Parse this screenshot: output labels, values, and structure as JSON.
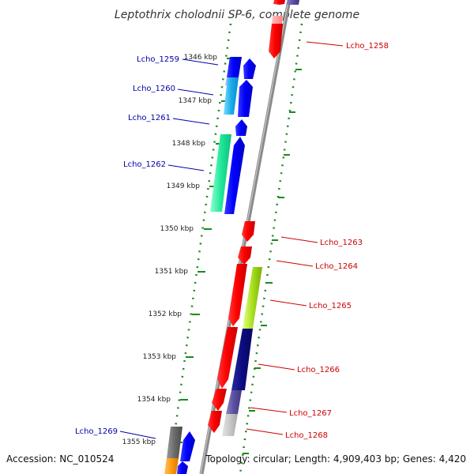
{
  "title": "Leptothrix cholodnii SP-6, complete genome",
  "accession_text": "Accession: NC_010524",
  "summary_text": "Topology: circular; Length: 4,909,403 bp; Genes: 4,420",
  "colors": {
    "forward_label": "#0000aa",
    "reverse_label": "#cc0000",
    "dotted_ring": "#1a8a1a",
    "backbone": "#8a8a8a"
  },
  "ticks": [
    {
      "label": "1346 kbp"
    },
    {
      "label": "1347 kbp"
    },
    {
      "label": "1348 kbp"
    },
    {
      "label": "1349 kbp"
    },
    {
      "label": "1350 kbp"
    },
    {
      "label": "1351 kbp"
    },
    {
      "label": "1352 kbp"
    },
    {
      "label": "1353 kbp"
    },
    {
      "label": "1354 kbp"
    },
    {
      "label": "1355 kbp"
    }
  ],
  "gene_labels": [
    {
      "name": "Lcho_1258",
      "strand": "reverse"
    },
    {
      "name": "Lcho_1259",
      "strand": "forward"
    },
    {
      "name": "Lcho_1260",
      "strand": "forward"
    },
    {
      "name": "Lcho_1261",
      "strand": "forward"
    },
    {
      "name": "Lcho_1262",
      "strand": "forward"
    },
    {
      "name": "Lcho_1263",
      "strand": "reverse"
    },
    {
      "name": "Lcho_1264",
      "strand": "reverse"
    },
    {
      "name": "Lcho_1265",
      "strand": "reverse"
    },
    {
      "name": "Lcho_1266",
      "strand": "reverse"
    },
    {
      "name": "Lcho_1267",
      "strand": "reverse"
    },
    {
      "name": "Lcho_1268",
      "strand": "reverse"
    },
    {
      "name": "Lcho_1269",
      "strand": "forward"
    }
  ]
}
